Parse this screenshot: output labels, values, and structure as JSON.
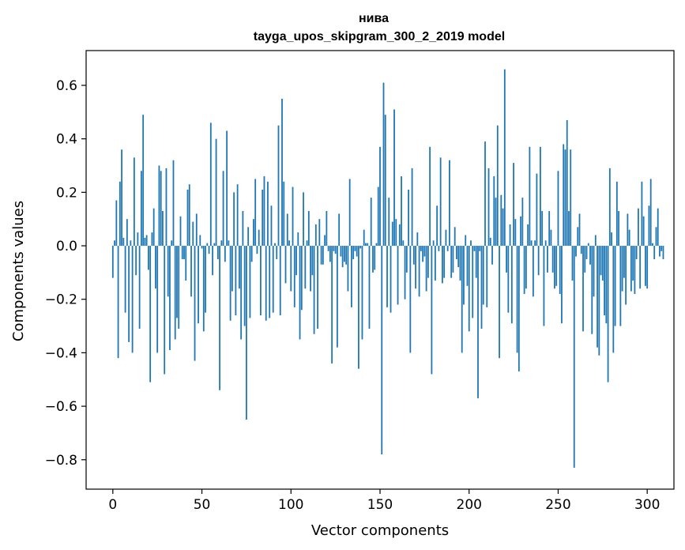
{
  "chart_data": {
    "type": "bar",
    "title": "нива",
    "subtitle": "tayga_upos_skipgram_300_2_2019 model",
    "xlabel": "Vector components",
    "ylabel": "Components values",
    "xlim": [
      -15,
      315
    ],
    "ylim": [
      -0.91,
      0.73
    ],
    "xticks": [
      0,
      50,
      100,
      150,
      200,
      250,
      300
    ],
    "xtick_labels": [
      "0",
      "50",
      "100",
      "150",
      "200",
      "250",
      "300"
    ],
    "yticks": [
      -0.8,
      -0.6,
      -0.4,
      -0.2,
      0.0,
      0.2,
      0.4,
      0.6
    ],
    "ytick_labels": [
      "−0.8",
      "−0.6",
      "−0.4",
      "−0.2",
      "0.0",
      "0.2",
      "0.4",
      "0.6"
    ],
    "color": "#1f77b4",
    "grid": false,
    "legend": "none",
    "values": [
      -0.12,
      0.02,
      0.17,
      -0.42,
      0.24,
      0.36,
      0.03,
      -0.25,
      0.1,
      -0.36,
      0.02,
      -0.4,
      0.33,
      -0.11,
      0.05,
      -0.31,
      0.28,
      0.49,
      0.03,
      0.04,
      -0.09,
      -0.51,
      0.05,
      0.14,
      -0.16,
      -0.4,
      0.3,
      0.28,
      0.13,
      -0.48,
      0.29,
      -0.19,
      -0.39,
      0.02,
      0.32,
      -0.35,
      -0.27,
      -0.31,
      0.11,
      -0.05,
      -0.05,
      -0.13,
      0.21,
      0.23,
      -0.19,
      0.09,
      -0.43,
      0.12,
      -0.29,
      0.04,
      -0.01,
      -0.32,
      -0.25,
      0.01,
      -0.03,
      0.46,
      -0.11,
      0.01,
      0.4,
      -0.05,
      -0.54,
      0.02,
      0.28,
      -0.06,
      0.43,
      0.02,
      -0.28,
      -0.17,
      0.2,
      -0.26,
      0.23,
      -0.16,
      -0.35,
      0.13,
      -0.3,
      -0.65,
      0.07,
      -0.27,
      -0.06,
      0.1,
      0.25,
      -0.03,
      0.06,
      -0.26,
      0.21,
      0.26,
      -0.28,
      0.24,
      -0.27,
      0.15,
      -0.25,
      0.01,
      -0.05,
      0.45,
      -0.26,
      0.55,
      0.24,
      -0.14,
      0.12,
      0.02,
      -0.17,
      0.22,
      -0.23,
      -0.11,
      0.05,
      -0.35,
      -0.24,
      0.2,
      -0.16,
      0.02,
      0.13,
      -0.17,
      -0.11,
      -0.33,
      0.08,
      -0.31,
      0.1,
      -0.07,
      -0.07,
      0.04,
      0.13,
      -0.02,
      -0.06,
      -0.44,
      -0.02,
      -0.03,
      -0.38,
      0.12,
      -0.04,
      -0.08,
      -0.06,
      -0.07,
      -0.17,
      0.25,
      -0.23,
      -0.05,
      -0.02,
      -0.04,
      -0.46,
      -0.01,
      -0.35,
      0.06,
      0.01,
      0.01,
      -0.31,
      0.18,
      -0.1,
      -0.09,
      0.01,
      0.22,
      0.37,
      -0.78,
      0.61,
      0.49,
      -0.23,
      0.18,
      -0.25,
      0.09,
      0.51,
      0.1,
      -0.22,
      0.08,
      0.26,
      0.02,
      -0.2,
      -0.1,
      0.21,
      -0.4,
      0.29,
      -0.07,
      -0.16,
      0.05,
      -0.19,
      -0.02,
      -0.06,
      -0.04,
      -0.17,
      -0.12,
      0.37,
      -0.48,
      0.02,
      -0.13,
      0.15,
      -0.02,
      0.33,
      -0.14,
      -0.12,
      0.06,
      -0.02,
      0.32,
      -0.12,
      -0.1,
      0.07,
      -0.05,
      -0.08,
      -0.13,
      -0.4,
      -0.22,
      0.04,
      -0.15,
      -0.32,
      0.02,
      -0.27,
      -0.02,
      -0.12,
      -0.57,
      -0.02,
      -0.31,
      -0.22,
      0.39,
      -0.23,
      0.29,
      0.03,
      -0.07,
      0.26,
      0.18,
      0.45,
      -0.42,
      0.19,
      0.14,
      0.66,
      -0.1,
      -0.25,
      0.08,
      -0.29,
      0.31,
      0.1,
      -0.4,
      -0.47,
      0.11,
      0.18,
      -0.18,
      -0.16,
      0.08,
      0.37,
      0.02,
      -0.19,
      0.02,
      0.27,
      -0.11,
      0.37,
      0.13,
      -0.3,
      0.02,
      -0.1,
      0.13,
      0.06,
      -0.1,
      -0.16,
      -0.15,
      0.28,
      -0.18,
      -0.29,
      0.38,
      0.36,
      0.47,
      0.13,
      0.36,
      -0.13,
      -0.83,
      -0.04,
      0.07,
      0.12,
      -0.03,
      -0.32,
      -0.1,
      -0.05,
      0.01,
      -0.07,
      -0.33,
      -0.19,
      0.04,
      -0.38,
      -0.41,
      -0.11,
      -0.13,
      -0.26,
      -0.29,
      -0.51,
      0.29,
      0.05,
      -0.4,
      -0.3,
      0.24,
      0.13,
      -0.3,
      -0.17,
      -0.12,
      -0.22,
      0.12,
      0.06,
      -0.17,
      -0.13,
      -0.18,
      -0.05,
      0.14,
      -0.16,
      0.24,
      0.11,
      -0.15,
      -0.16,
      0.15,
      0.25,
      0.01,
      -0.05,
      0.07,
      0.14,
      -0.04,
      -0.02,
      -0.05
    ]
  }
}
